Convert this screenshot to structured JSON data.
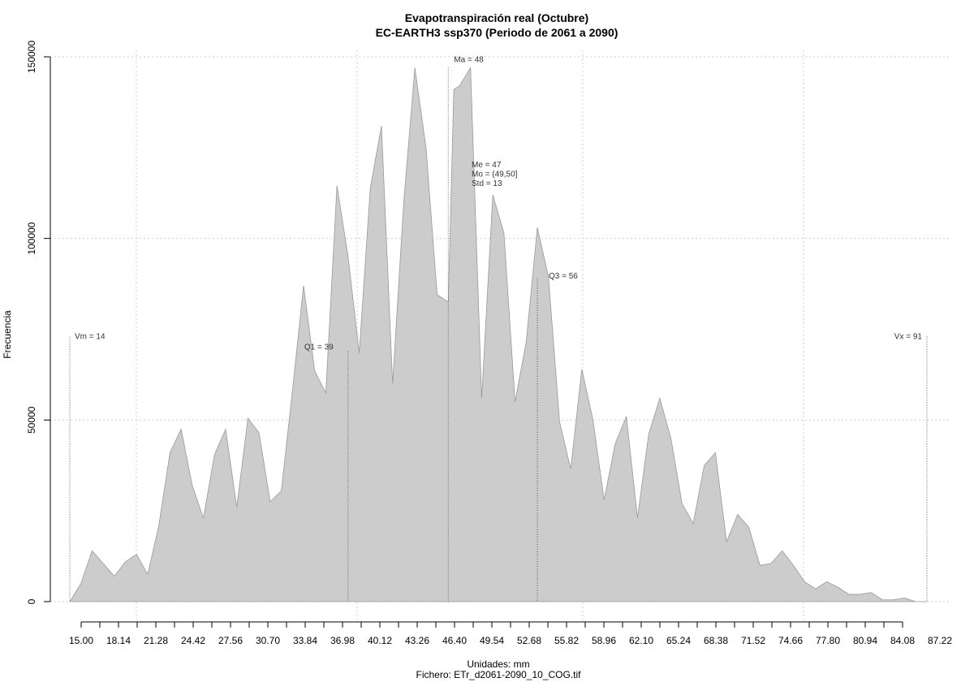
{
  "chart_data": {
    "type": "area",
    "title": "Evapotranspiración real (Octubre)",
    "subtitle": "EC-EARTH3 ssp370 (Periodo de 2061 a 2090)",
    "xlabel": "Unidades: mm",
    "ylabel": "Frecuencia",
    "caption": "Fichero: ETr_d2061-2090_10_COG.tif",
    "fill_color": "#cccccc",
    "line_color": "#999999",
    "grid": true,
    "xlim": [
      14,
      91
    ],
    "ylim": [
      0,
      150000
    ],
    "y_ticks": [
      0,
      50000,
      100000,
      150000
    ],
    "y_tick_labels": [
      "0",
      "50000",
      "100000",
      "150000"
    ],
    "x_tick_labels": [
      "15.00",
      "18.14",
      "21.28",
      "24.42",
      "27.56",
      "30.70",
      "33.84",
      "36.98",
      "40.12",
      "43.26",
      "46.40",
      "49.54",
      "52.68",
      "55.82",
      "58.96",
      "62.10",
      "65.24",
      "68.38",
      "71.52",
      "74.66",
      "77.80",
      "80.94",
      "84.08",
      "87.22"
    ],
    "x": [
      14.0,
      15.0,
      16.0,
      17.0,
      18.0,
      19.0,
      20.0,
      21.0,
      22.0,
      23.0,
      24.0,
      25.0,
      26.0,
      27.0,
      28.0,
      29.0,
      30.0,
      31.0,
      32.0,
      33.0,
      34.0,
      35.0,
      36.0,
      37.0,
      38.0,
      39.0,
      40.0,
      41.0,
      42.0,
      43.0,
      44.0,
      45.0,
      46.0,
      47.0,
      48.0,
      48.5,
      49.0,
      50.0,
      51.0,
      52.0,
      53.0,
      54.0,
      55.0,
      56.0,
      57.0,
      58.0,
      59.0,
      60.0,
      61.0,
      62.0,
      63.0,
      64.0,
      65.0,
      66.0,
      67.0,
      68.0,
      69.0,
      70.0,
      71.0,
      72.0,
      73.0,
      74.0,
      75.0,
      76.0,
      77.0,
      78.0,
      79.0,
      80.0,
      81.0,
      82.0,
      83.0,
      84.0,
      85.0,
      86.0,
      87.0,
      88.0,
      89.0,
      90.0,
      91.0
    ],
    "values": [
      0,
      5000,
      14000,
      10500,
      7000,
      11000,
      13000,
      7500,
      21000,
      41000,
      47500,
      32000,
      23000,
      40500,
      47500,
      26000,
      50500,
      46500,
      27500,
      30500,
      58000,
      87000,
      63500,
      57500,
      114500,
      95000,
      68500,
      114000,
      131000,
      60000,
      110000,
      147000,
      125000,
      84500,
      82500,
      141000,
      142000,
      147000,
      56000,
      112000,
      101500,
      55000,
      71500,
      103000,
      89500,
      49500,
      36500,
      64000,
      50000,
      28000,
      43500,
      51000,
      23000,
      46000,
      56000,
      45000,
      27000,
      21500,
      37500,
      41000,
      16500,
      24000,
      20500,
      10000,
      10500,
      14000,
      10000,
      5500,
      3500,
      5500,
      4000,
      2000,
      2000,
      2500,
      500,
      500,
      1000,
      0,
      0
    ],
    "markers": [
      {
        "label": "Vm = 14",
        "x": 14,
        "y": 73000
      },
      {
        "label": "Q1 = 39",
        "x": 39,
        "y": 69000
      },
      {
        "label": "Ma = 48",
        "x": 48,
        "y": 147000
      },
      {
        "label": "Q3 = 56",
        "x": 56,
        "y": 89000
      },
      {
        "label": "Vx = 91",
        "x": 91,
        "y": 73000
      }
    ],
    "stats_box": [
      "Me = 47",
      "Mo = (49,50]",
      "Std = 13"
    ]
  }
}
